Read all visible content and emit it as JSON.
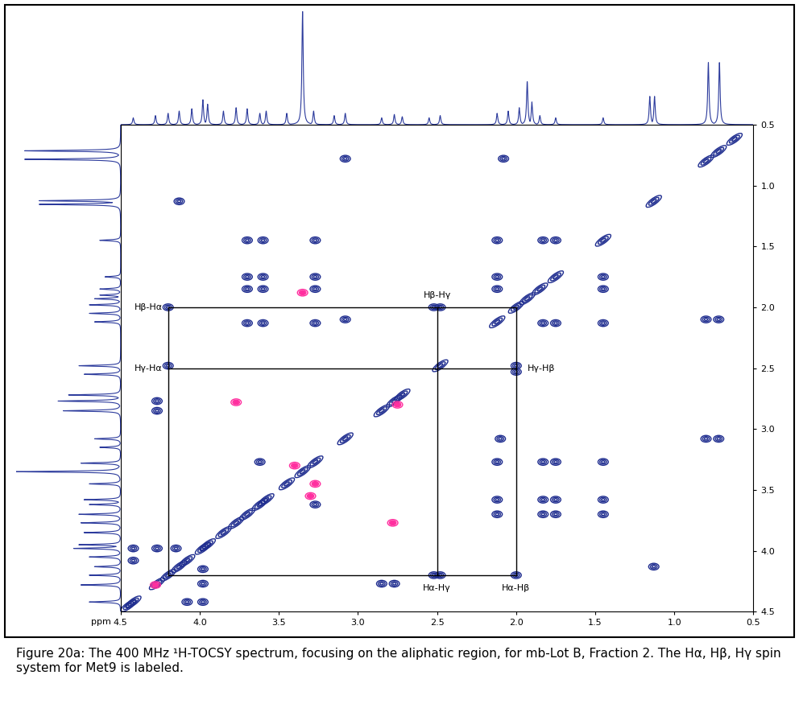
{
  "chart_data": {
    "type": "contour",
    "caption": "Figure 20a: The 400 MHz ¹H-TOCSY spectrum, focusing on the aliphatic region, for mb-Lot B, Fraction 2. The Hα, Hβ, Hγ spin system for Met9 is labeled.",
    "x_label": "ppm",
    "xlim": [
      4.5,
      0.5
    ],
    "xticks": [
      4.5,
      4.0,
      3.5,
      3.0,
      2.5,
      2.0,
      1.5,
      1.0,
      0.5
    ],
    "ylim": [
      4.5,
      0.5
    ],
    "yticks": [
      0.5,
      1.0,
      1.5,
      2.0,
      2.5,
      3.0,
      3.5,
      4.0,
      4.5
    ],
    "series": [
      {
        "type": "diagonal",
        "color": "#1f2d8f",
        "marker": "ring",
        "points": [
          [
            4.45,
            4.45
          ],
          [
            4.42,
            4.42
          ],
          [
            4.27,
            4.27
          ],
          [
            4.2,
            4.2
          ],
          [
            4.13,
            4.13
          ],
          [
            4.08,
            4.08
          ],
          [
            3.98,
            3.98
          ],
          [
            3.95,
            3.95
          ],
          [
            3.85,
            3.85
          ],
          [
            3.77,
            3.77
          ],
          [
            3.7,
            3.7
          ],
          [
            3.62,
            3.62
          ],
          [
            3.58,
            3.58
          ],
          [
            3.45,
            3.45
          ],
          [
            3.35,
            3.35
          ],
          [
            3.27,
            3.27
          ],
          [
            3.08,
            3.08
          ],
          [
            2.85,
            2.85
          ],
          [
            2.77,
            2.77
          ],
          [
            2.72,
            2.72
          ],
          [
            2.48,
            2.48
          ],
          [
            2.12,
            2.12
          ],
          [
            2.0,
            2.0
          ],
          [
            1.93,
            1.93
          ],
          [
            1.85,
            1.85
          ],
          [
            1.75,
            1.75
          ],
          [
            1.45,
            1.45
          ],
          [
            1.13,
            1.13
          ],
          [
            0.8,
            0.8
          ],
          [
            0.72,
            0.72
          ],
          [
            0.62,
            0.62
          ]
        ]
      },
      {
        "type": "cross",
        "color": "#1f2d8f",
        "marker": "ring",
        "points": [
          [
            3.08,
            0.78
          ],
          [
            2.08,
            0.78
          ],
          [
            4.13,
            1.13
          ],
          [
            3.7,
            1.45
          ],
          [
            3.6,
            1.45
          ],
          [
            3.27,
            1.45
          ],
          [
            2.12,
            1.45
          ],
          [
            1.83,
            1.45
          ],
          [
            1.75,
            1.45
          ],
          [
            3.7,
            1.75
          ],
          [
            3.6,
            1.75
          ],
          [
            3.27,
            1.75
          ],
          [
            2.12,
            1.75
          ],
          [
            1.45,
            1.75
          ],
          [
            3.7,
            1.85
          ],
          [
            3.6,
            1.85
          ],
          [
            3.27,
            1.85
          ],
          [
            2.12,
            1.85
          ],
          [
            1.45,
            1.85
          ],
          [
            4.2,
            2.0
          ],
          [
            2.48,
            2.0
          ],
          [
            2.52,
            2.0
          ],
          [
            3.7,
            2.13
          ],
          [
            3.6,
            2.13
          ],
          [
            3.27,
            2.13
          ],
          [
            3.08,
            2.1
          ],
          [
            1.83,
            2.13
          ],
          [
            1.75,
            2.13
          ],
          [
            1.45,
            2.13
          ],
          [
            0.8,
            2.1
          ],
          [
            0.72,
            2.1
          ],
          [
            4.2,
            2.48
          ],
          [
            2.0,
            2.48
          ],
          [
            2.0,
            2.53
          ],
          [
            4.27,
            2.77
          ],
          [
            4.27,
            2.85
          ],
          [
            2.1,
            3.08
          ],
          [
            0.8,
            3.08
          ],
          [
            0.72,
            3.08
          ],
          [
            2.12,
            3.27
          ],
          [
            1.83,
            3.27
          ],
          [
            1.75,
            3.27
          ],
          [
            1.45,
            3.27
          ],
          [
            2.12,
            3.58
          ],
          [
            1.83,
            3.58
          ],
          [
            1.75,
            3.58
          ],
          [
            1.45,
            3.58
          ],
          [
            2.12,
            3.7
          ],
          [
            1.83,
            3.7
          ],
          [
            1.75,
            3.7
          ],
          [
            1.45,
            3.7
          ],
          [
            3.62,
            3.27
          ],
          [
            3.27,
            3.62
          ],
          [
            4.42,
            3.98
          ],
          [
            4.42,
            4.08
          ],
          [
            4.27,
            3.98
          ],
          [
            4.15,
            3.98
          ],
          [
            3.98,
            4.15
          ],
          [
            3.98,
            4.27
          ],
          [
            3.98,
            4.42
          ],
          [
            4.08,
            4.42
          ],
          [
            2.85,
            4.27
          ],
          [
            2.77,
            4.27
          ],
          [
            2.48,
            4.2
          ],
          [
            2.52,
            4.2
          ],
          [
            2.0,
            4.2
          ],
          [
            1.13,
            4.13
          ]
        ]
      },
      {
        "type": "cross",
        "color": "#ff2f9f",
        "marker": "filled",
        "points": [
          [
            3.77,
            2.78
          ],
          [
            2.78,
            3.77
          ],
          [
            3.35,
            1.88
          ],
          [
            3.4,
            3.3
          ],
          [
            3.27,
            3.45
          ],
          [
            3.3,
            3.55
          ],
          [
            2.75,
            2.8
          ],
          [
            4.28,
            4.28
          ]
        ]
      }
    ],
    "box": {
      "x": [
        4.2,
        2.5,
        2.0
      ],
      "y": [
        2.0,
        2.5,
        4.2
      ]
    },
    "annotations": [
      {
        "text": "Hβ-Hα",
        "x": 4.2,
        "y": 2.0
      },
      {
        "text": "Hβ-Hγ",
        "x": 2.5,
        "y": 2.0
      },
      {
        "text": "Hγ-Hα",
        "x": 4.2,
        "y": 2.5
      },
      {
        "text": "Hγ-Hβ",
        "x": 2.0,
        "y": 2.5
      },
      {
        "text": "Hα-Hγ",
        "x": 2.5,
        "y": 4.2
      },
      {
        "text": "Hα-Hβ",
        "x": 2.0,
        "y": 4.2
      }
    ],
    "top_projection": {
      "color": "#2b3a9c",
      "x": [
        4.42,
        4.28,
        4.2,
        4.13,
        4.05,
        3.98,
        3.95,
        3.85,
        3.77,
        3.7,
        3.62,
        3.58,
        3.45,
        3.35,
        3.28,
        3.15,
        3.08,
        2.85,
        2.77,
        2.72,
        2.55,
        2.48,
        2.12,
        2.05,
        1.98,
        1.93,
        1.9,
        1.85,
        1.75,
        1.45,
        1.155,
        1.125,
        0.785,
        0.715
      ],
      "values": [
        6,
        8,
        10,
        12,
        14,
        22,
        18,
        12,
        15,
        14,
        10,
        12,
        10,
        100,
        12,
        8,
        10,
        6,
        9,
        7,
        6,
        8,
        10,
        12,
        15,
        38,
        20,
        8,
        6,
        6,
        25,
        25,
        55,
        55
      ],
      "ylim": [
        0,
        100
      ]
    },
    "left_projection": {
      "color": "#2b3a9c",
      "y": [
        4.42,
        4.28,
        4.2,
        4.13,
        4.05,
        3.98,
        3.95,
        3.85,
        3.77,
        3.7,
        3.62,
        3.58,
        3.45,
        3.35,
        3.28,
        3.15,
        3.08,
        2.85,
        2.77,
        2.72,
        2.55,
        2.48,
        2.12,
        2.05,
        1.98,
        1.93,
        1.9,
        1.85,
        1.75,
        1.45,
        1.155,
        1.125,
        0.785,
        0.715
      ],
      "values": [
        30,
        38,
        30,
        25,
        30,
        45,
        40,
        35,
        38,
        40,
        30,
        35,
        30,
        100,
        38,
        20,
        25,
        55,
        60,
        50,
        35,
        40,
        25,
        30,
        30,
        25,
        20,
        20,
        15,
        20,
        78,
        78,
        92,
        92
      ],
      "xlim": [
        100,
        0
      ]
    }
  }
}
